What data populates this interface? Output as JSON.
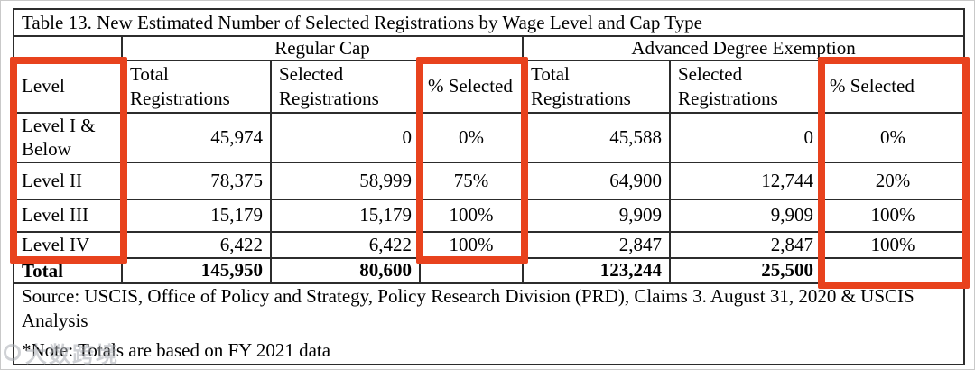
{
  "title": "Table 13. New Estimated Number of Selected Registrations by Wage Level and Cap Type",
  "table": {
    "group_headers": {
      "regular": "Regular Cap",
      "advanced": "Advanced Degree Exemption"
    },
    "column_headers": {
      "level": "Level",
      "reg_total": "Total Registrations",
      "reg_selected": "Selected Registrations",
      "reg_pct": "% Selected",
      "adv_total": "Total Registrations",
      "adv_selected": "Selected Registrations",
      "adv_pct": "% Selected"
    },
    "rows": [
      {
        "level": "Level I & Below",
        "reg_total": "45,974",
        "reg_selected": "0",
        "reg_pct": "0%",
        "adv_total": "45,588",
        "adv_selected": "0",
        "adv_pct": "0%"
      },
      {
        "level": "Level II",
        "reg_total": "78,375",
        "reg_selected": "58,999",
        "reg_pct": "75%",
        "adv_total": "64,900",
        "adv_selected": "12,744",
        "adv_pct": "20%"
      },
      {
        "level": "Level III",
        "reg_total": "15,179",
        "reg_selected": "15,179",
        "reg_pct": "100%",
        "adv_total": "9,909",
        "adv_selected": "9,909",
        "adv_pct": "100%"
      },
      {
        "level": "Level IV",
        "reg_total": "6,422",
        "reg_selected": "6,422",
        "reg_pct": "100%",
        "adv_total": "2,847",
        "adv_selected": "2,847",
        "adv_pct": "100%"
      }
    ],
    "totals": {
      "label": "Total",
      "reg_total": "145,950",
      "reg_selected": "80,600",
      "reg_pct": "",
      "adv_total": "123,244",
      "adv_selected": "25,500",
      "adv_pct": ""
    }
  },
  "footer": {
    "source": "Source: USCIS, Office of Policy and Strategy, Policy Research Division (PRD), Claims 3.  August 31, 2020 & USCIS Analysis",
    "note": "*Note: Totals are based on FY 2021 data"
  },
  "watermark": {
    "text": "大数跨境"
  },
  "colors": {
    "highlight_red": "#e8421d",
    "table_border": "#2c2c2c"
  }
}
